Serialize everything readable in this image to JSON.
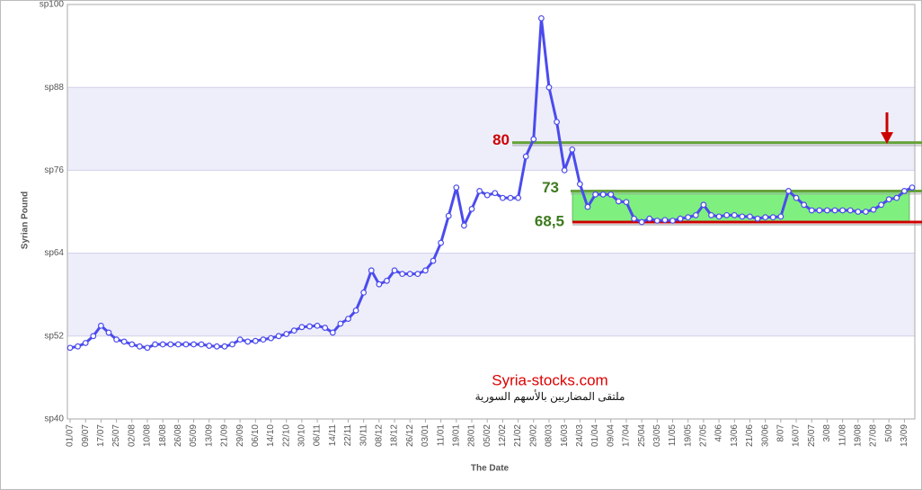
{
  "chart_data": {
    "type": "line",
    "y_label": "Syrian Pound",
    "x_label": "The Date",
    "categories": [
      "01/07",
      null,
      "09/07",
      null,
      "17/07",
      null,
      "25/07",
      null,
      "02/08",
      null,
      "10/08",
      null,
      "18/08",
      null,
      "26/08",
      null,
      "05/09",
      null,
      "13/09",
      null,
      "21/09",
      null,
      "29/09",
      null,
      "06/10",
      null,
      "14/10",
      null,
      "22/10",
      null,
      "30/10",
      null,
      "06/11",
      null,
      "14/11",
      null,
      "22/11",
      null,
      "30/11",
      null,
      "08/12",
      null,
      "18/12",
      null,
      "26/12",
      null,
      "03/01",
      null,
      "11/01",
      null,
      "19/01",
      null,
      "28/01",
      null,
      "05/02",
      null,
      "12/02",
      null,
      "21/02",
      null,
      "29/02",
      null,
      "08/03",
      null,
      "16/03",
      null,
      "24/03",
      null,
      "01/04",
      null,
      "09/04",
      null,
      "17/04",
      null,
      "25/04",
      null,
      "03/05",
      null,
      "11/05",
      null,
      "19/05",
      null,
      "27/05",
      null,
      "4/06",
      null,
      "13/06",
      null,
      "21/06",
      null,
      "30/06",
      null,
      "8/07",
      null,
      "16/07",
      null,
      "25/07",
      null,
      "3/08",
      null,
      "11/08",
      null,
      "19/08",
      null,
      "27/08",
      null,
      "5/09",
      null,
      "13/09",
      null
    ],
    "series": [
      {
        "color": "#4b4bee",
        "values": [
          50.3,
          50.5,
          51,
          52,
          53.5,
          52.5,
          51.5,
          51.2,
          50.8,
          50.5,
          50.3,
          50.8,
          50.8,
          50.8,
          50.8,
          50.8,
          50.8,
          50.8,
          50.6,
          50.5,
          50.5,
          50.8,
          51.5,
          51.2,
          51.3,
          51.5,
          51.7,
          52,
          52.3,
          52.8,
          53.3,
          53.4,
          53.5,
          53.2,
          52.5,
          53.8,
          54.5,
          55.7,
          58.3,
          61.5,
          59.5,
          60,
          61.5,
          61,
          61,
          61,
          61.5,
          62.9,
          65.5,
          69.4,
          73.5,
          68,
          70.4,
          73,
          72.4,
          72.7,
          72,
          72,
          72,
          78,
          80.5,
          98,
          88,
          83,
          76,
          79,
          74,
          70.7,
          72.5,
          72.5,
          72.5,
          71.5,
          71.4,
          69,
          68.5,
          69,
          68.7,
          68.8,
          68.7,
          69,
          69.2,
          69.5,
          71,
          69.5,
          69.3,
          69.5,
          69.5,
          69.3,
          69.3,
          69,
          69.2,
          69.2,
          69.3,
          73,
          72,
          71,
          70.2,
          70.2,
          70.2,
          70.2,
          70.2,
          70.2,
          70,
          70,
          70.3,
          71,
          71.8,
          72,
          73,
          73.5
        ]
      }
    ],
    "ylim": [
      40,
      100
    ],
    "yticks": [
      {
        "value": 40,
        "label": "sp40"
      },
      {
        "value": 52,
        "label": "sp52"
      },
      {
        "value": 64,
        "label": "sp64"
      },
      {
        "value": 76,
        "label": "sp76"
      },
      {
        "value": 88,
        "label": "sp88"
      },
      {
        "value": 100,
        "label": "sp100"
      }
    ],
    "annotations": [
      {
        "label": "80",
        "value": 80,
        "color": "#cc0000",
        "line_color": "#66a23a"
      },
      {
        "label": "73",
        "value": 73,
        "color": "#3d7a1e",
        "line_color": "#66a23a"
      },
      {
        "label": "68,5",
        "value": 68.5,
        "color": "#3d7a1e",
        "line_color": "#cc0000"
      }
    ],
    "band_color": "#7ff07f",
    "watermark": "Syria-stocks.com",
    "watermark_subtitle": "ملتقى المضاربين بالأسهم السورية"
  }
}
